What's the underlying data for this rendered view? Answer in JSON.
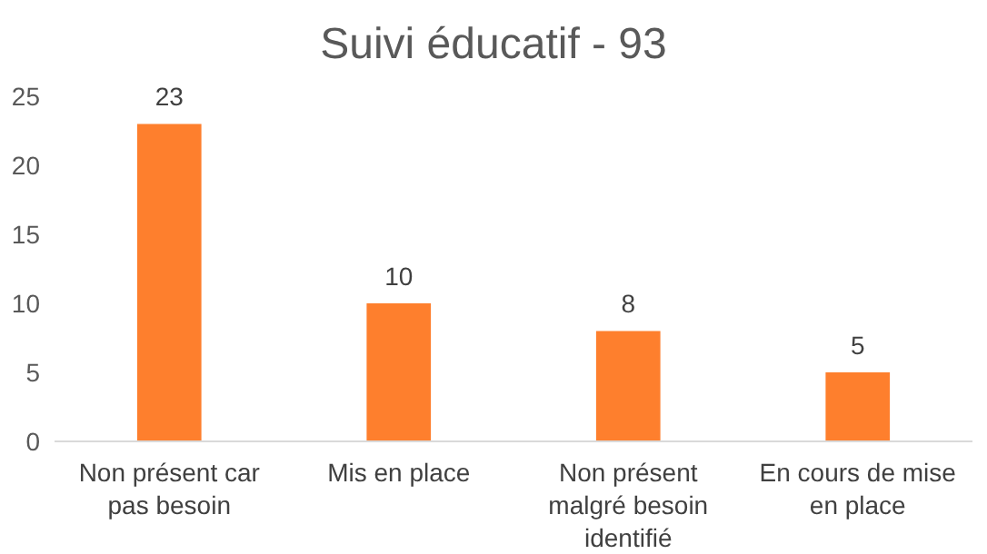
{
  "chart_data": {
    "type": "bar",
    "title": "Suivi éducatif - 93",
    "categories": [
      "Non présent car pas besoin",
      "Mis en place",
      "Non présent malgré besoin identifié",
      "En cours de mise en place"
    ],
    "values": [
      23,
      10,
      8,
      5
    ],
    "color": "#fe7f2d",
    "ylim": [
      0,
      25
    ],
    "yticks": [
      0,
      5,
      10,
      15,
      20,
      25
    ],
    "grid": false,
    "data_labels": true
  }
}
